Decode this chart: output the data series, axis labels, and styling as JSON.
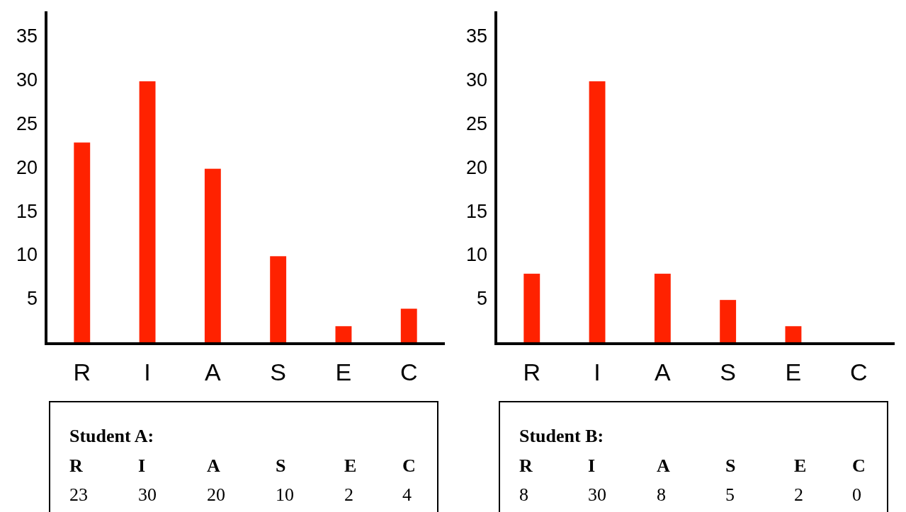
{
  "chart_data": [
    {
      "type": "bar",
      "title": "Student A:",
      "categories": [
        "R",
        "I",
        "A",
        "S",
        "E",
        "C"
      ],
      "values": [
        23,
        30,
        20,
        10,
        2,
        4
      ],
      "color": "#ff2200",
      "ylim": [
        0,
        38
      ],
      "yticks": [
        5,
        10,
        15,
        20,
        25,
        30,
        35
      ],
      "data_labels": true
    },
    {
      "type": "bar",
      "title": "Student B:",
      "categories": [
        "R",
        "I",
        "A",
        "S",
        "E",
        "C"
      ],
      "values": [
        8,
        30,
        8,
        5,
        2,
        0
      ],
      "color": "#ff2200",
      "ylim": [
        0,
        38
      ],
      "yticks": [
        5,
        10,
        15,
        20,
        25,
        30,
        35
      ],
      "data_labels": true
    }
  ]
}
